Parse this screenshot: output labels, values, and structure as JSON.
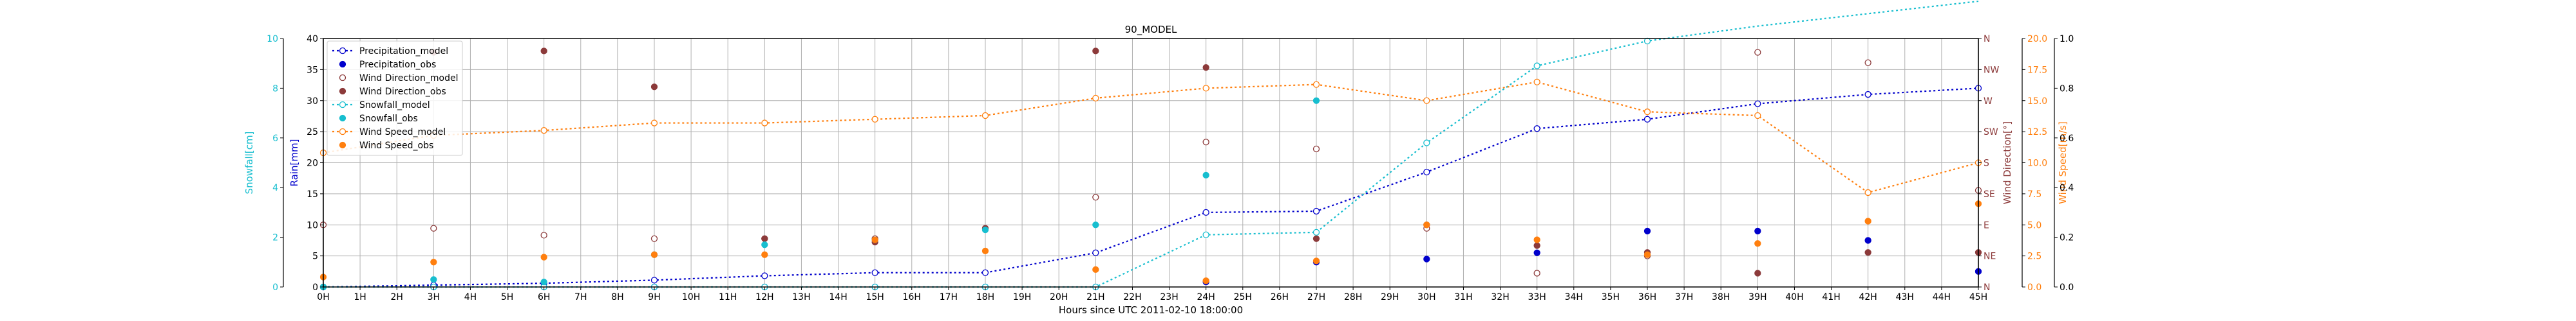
{
  "chart_data": {
    "type": "line",
    "title": "90_MODEL",
    "xlabel": "Hours since UTC 2011-02-10 18:00:00",
    "x_ticks": [
      "0H",
      "1H",
      "2H",
      "3H",
      "4H",
      "5H",
      "6H",
      "7H",
      "8H",
      "9H",
      "10H",
      "11H",
      "12H",
      "13H",
      "14H",
      "15H",
      "16H",
      "17H",
      "18H",
      "19H",
      "20H",
      "21H",
      "22H",
      "23H",
      "24H",
      "25H",
      "26H",
      "27H",
      "28H",
      "29H",
      "30H",
      "31H",
      "32H",
      "33H",
      "34H",
      "35H",
      "36H",
      "37H",
      "38H",
      "39H",
      "40H",
      "41H",
      "42H",
      "43H",
      "44H",
      "45H"
    ],
    "xlim": [
      0,
      45
    ],
    "grid": true,
    "legend_position": "upper-left",
    "axes": {
      "snow": {
        "label": "Snowfall[cm]",
        "ylim": [
          0,
          10
        ],
        "ticks": [
          "0",
          "2",
          "4",
          "6",
          "8",
          "10"
        ],
        "color": "#17becf"
      },
      "rain": {
        "label": "Rain[mm]",
        "ylim": [
          0,
          40
        ],
        "ticks": [
          "0",
          "5",
          "10",
          "15",
          "20",
          "25",
          "30",
          "35",
          "40"
        ],
        "color": "#0000cc"
      },
      "direction": {
        "label": "Wind Direction[°]",
        "ylim": [
          0,
          360
        ],
        "ticks": [
          "N",
          "NE",
          "E",
          "SE",
          "S",
          "SW",
          "W",
          "NW",
          "N"
        ],
        "color": "#8c3a3a"
      },
      "speed": {
        "label": "Wind Speed[m/s]",
        "ylim": [
          0,
          20
        ],
        "ticks": [
          "0.0",
          "2.5",
          "5.0",
          "7.5",
          "10.0",
          "12.5",
          "15.0",
          "17.5",
          "20.0"
        ],
        "color": "#ff7f0e"
      },
      "extra": {
        "ylim": [
          0,
          1
        ],
        "ticks": [
          "0.0",
          "0.2",
          "0.4",
          "0.6",
          "0.8",
          "1.0"
        ]
      }
    },
    "series": [
      {
        "name": "Precipitation_model",
        "axis": "rain",
        "kind": "line",
        "marker": "open",
        "color": "#0000cc",
        "points": [
          [
            0,
            0
          ],
          [
            3,
            0.3
          ],
          [
            6,
            0.6
          ],
          [
            9,
            1.1
          ],
          [
            12,
            1.8
          ],
          [
            15,
            2.3
          ],
          [
            18,
            2.3
          ],
          [
            21,
            5.5
          ],
          [
            24,
            12
          ],
          [
            27,
            12.2
          ],
          [
            30,
            18.5
          ],
          [
            33,
            25.5
          ],
          [
            36,
            27
          ],
          [
            39,
            29.5
          ],
          [
            42,
            31
          ],
          [
            45,
            32
          ]
        ]
      },
      {
        "name": "Precipitation_obs",
        "axis": "rain",
        "kind": "points",
        "marker": "filled",
        "color": "#0000cc",
        "points": [
          [
            0,
            0
          ],
          [
            3,
            0
          ],
          [
            6,
            0
          ],
          [
            9,
            0
          ],
          [
            12,
            0
          ],
          [
            15,
            0
          ],
          [
            18,
            0
          ],
          [
            21,
            0
          ],
          [
            24,
            0.8
          ],
          [
            27,
            4
          ],
          [
            30,
            4.5
          ],
          [
            33,
            5.5
          ],
          [
            36,
            9
          ],
          [
            39,
            9
          ],
          [
            42,
            7.5
          ],
          [
            45,
            2.5
          ]
        ]
      },
      {
        "name": "Wind Direction_model",
        "axis": "direction",
        "kind": "points",
        "marker": "open",
        "color": "#8c3a3a",
        "points": [
          [
            0,
            90
          ],
          [
            3,
            85
          ],
          [
            6,
            75
          ],
          [
            9,
            70
          ],
          [
            12,
            70
          ],
          [
            15,
            70
          ],
          [
            18,
            85
          ],
          [
            21,
            130
          ],
          [
            24,
            210
          ],
          [
            27,
            200
          ],
          [
            30,
            85
          ],
          [
            33,
            20
          ],
          [
            36,
            45
          ],
          [
            39,
            340
          ],
          [
            42,
            325
          ],
          [
            45,
            140
          ]
        ]
      },
      {
        "name": "Wind Direction_obs",
        "axis": "direction",
        "kind": "points",
        "marker": "filled",
        "color": "#8c3a3a",
        "points": [
          [
            0,
            0
          ],
          [
            3,
            340
          ],
          [
            6,
            342
          ],
          [
            9,
            290
          ],
          [
            12,
            70
          ],
          [
            15,
            65
          ],
          [
            18,
            85
          ],
          [
            21,
            342
          ],
          [
            24,
            318
          ],
          [
            27,
            70
          ],
          [
            30,
            90
          ],
          [
            33,
            60
          ],
          [
            36,
            50
          ],
          [
            39,
            20
          ],
          [
            42,
            50
          ],
          [
            45,
            50
          ]
        ]
      },
      {
        "name": "Snowfall_model",
        "axis": "snow",
        "kind": "line",
        "marker": "open",
        "color": "#17becf",
        "points": [
          [
            0,
            0
          ],
          [
            3,
            0
          ],
          [
            6,
            0
          ],
          [
            9,
            0
          ],
          [
            12,
            0
          ],
          [
            15,
            0
          ],
          [
            18,
            0
          ],
          [
            21,
            0
          ],
          [
            24,
            2.1
          ],
          [
            27,
            2.2
          ],
          [
            30,
            5.8
          ],
          [
            33,
            8.9
          ],
          [
            36,
            9.9
          ],
          [
            39,
            10.5
          ],
          [
            42,
            11
          ],
          [
            45,
            11.5
          ]
        ]
      },
      {
        "name": "Snowfall_obs",
        "axis": "snow",
        "kind": "points",
        "marker": "filled",
        "color": "#17becf",
        "points": [
          [
            0,
            0
          ],
          [
            3,
            0.3
          ],
          [
            6,
            0.2
          ],
          [
            9,
            1.3
          ],
          [
            12,
            1.7
          ],
          [
            15,
            1.9
          ],
          [
            18,
            2.3
          ],
          [
            21,
            2.5
          ],
          [
            24,
            4.5
          ],
          [
            27,
            7.5
          ]
        ]
      },
      {
        "name": "Wind Speed_model",
        "axis": "speed",
        "kind": "line",
        "marker": "open",
        "color": "#ff7f0e",
        "points": [
          [
            0,
            10.8
          ],
          [
            3,
            12.2
          ],
          [
            6,
            12.6
          ],
          [
            9,
            13.2
          ],
          [
            12,
            13.2
          ],
          [
            15,
            13.5
          ],
          [
            18,
            13.8
          ],
          [
            21,
            15.2
          ],
          [
            24,
            16.0
          ],
          [
            27,
            16.3
          ],
          [
            30,
            15.0
          ],
          [
            33,
            16.5
          ],
          [
            36,
            14.1
          ],
          [
            39,
            13.8
          ],
          [
            42,
            7.6
          ],
          [
            45,
            10.0
          ]
        ]
      },
      {
        "name": "Wind Speed_obs",
        "axis": "speed",
        "kind": "points",
        "marker": "filled",
        "color": "#ff7f0e",
        "points": [
          [
            0,
            0.8
          ],
          [
            3,
            2.0
          ],
          [
            6,
            2.4
          ],
          [
            9,
            2.6
          ],
          [
            12,
            2.6
          ],
          [
            15,
            3.8
          ],
          [
            18,
            2.9
          ],
          [
            21,
            1.4
          ],
          [
            24,
            0.5
          ],
          [
            27,
            2.1
          ],
          [
            30,
            5.0
          ],
          [
            33,
            3.8
          ],
          [
            36,
            2.6
          ],
          [
            39,
            3.5
          ],
          [
            42,
            5.3
          ],
          [
            45,
            6.7
          ]
        ]
      }
    ]
  }
}
